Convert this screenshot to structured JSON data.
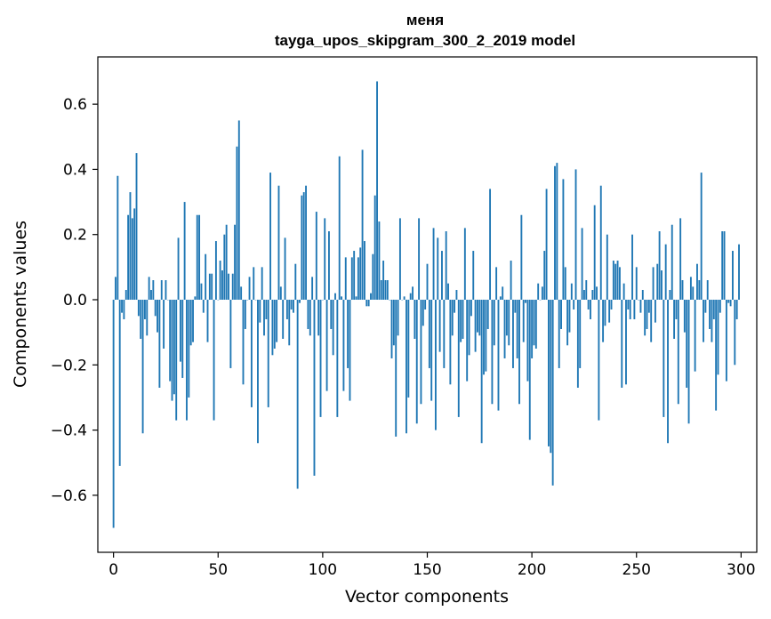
{
  "chart_data": {
    "type": "bar",
    "title": "меня",
    "subtitle": "tayga_upos_skipgram_300_2_2019 model",
    "xlabel": "Vector components",
    "ylabel": "Components values",
    "xlim": [
      -7.5,
      307.5
    ],
    "ylim": [
      -0.775,
      0.745
    ],
    "xticks": [
      0,
      50,
      100,
      150,
      200,
      250,
      300
    ],
    "xtick_labels": [
      "0",
      "50",
      "100",
      "150",
      "200",
      "250",
      "300"
    ],
    "yticks": [
      -0.6,
      -0.4,
      -0.2,
      0.0,
      0.2,
      0.4,
      0.6
    ],
    "ytick_labels": [
      "−0.6",
      "−0.4",
      "−0.2",
      "0.0",
      "0.2",
      "0.4",
      "0.6"
    ],
    "bar_color": "#1f77b4",
    "grid": false,
    "values": [
      -0.7,
      0.07,
      0.38,
      -0.51,
      -0.04,
      -0.06,
      0.03,
      0.26,
      0.33,
      0.25,
      0.28,
      0.45,
      -0.05,
      -0.12,
      -0.41,
      -0.06,
      -0.11,
      0.07,
      0.03,
      0.06,
      -0.05,
      -0.1,
      -0.27,
      0.06,
      -0.15,
      0.06,
      0.0,
      -0.25,
      -0.31,
      -0.29,
      -0.37,
      0.19,
      -0.19,
      -0.24,
      0.3,
      -0.37,
      -0.3,
      -0.14,
      -0.13,
      0.01,
      0.26,
      0.26,
      0.05,
      -0.04,
      0.14,
      -0.13,
      0.08,
      0.08,
      -0.37,
      0.18,
      0.0,
      0.12,
      0.09,
      0.2,
      0.23,
      0.08,
      -0.21,
      0.08,
      0.23,
      0.47,
      0.55,
      0.04,
      -0.26,
      -0.09,
      0.0,
      0.07,
      -0.33,
      0.1,
      0.0,
      -0.44,
      -0.07,
      0.1,
      -0.11,
      -0.06,
      -0.33,
      0.39,
      -0.17,
      -0.15,
      -0.13,
      0.35,
      0.04,
      -0.12,
      0.19,
      -0.06,
      -0.14,
      -0.03,
      -0.04,
      0.11,
      -0.58,
      -0.01,
      0.32,
      0.33,
      0.35,
      -0.09,
      -0.11,
      0.07,
      -0.54,
      0.27,
      -0.11,
      -0.36,
      0.0,
      0.25,
      -0.28,
      0.21,
      -0.09,
      -0.17,
      0.02,
      -0.36,
      0.44,
      0.01,
      -0.28,
      0.13,
      -0.21,
      -0.31,
      0.13,
      0.15,
      0.01,
      0.13,
      0.16,
      0.46,
      0.18,
      -0.02,
      -0.02,
      0.02,
      0.14,
      0.32,
      0.67,
      0.24,
      0.06,
      0.12,
      0.06,
      0.06,
      0.0,
      -0.18,
      -0.14,
      -0.42,
      -0.11,
      0.25,
      0.0,
      0.01,
      -0.41,
      -0.3,
      0.02,
      0.04,
      -0.12,
      -0.38,
      0.25,
      -0.32,
      -0.08,
      -0.03,
      0.11,
      -0.21,
      -0.31,
      0.22,
      -0.4,
      0.19,
      -0.16,
      0.15,
      -0.21,
      0.21,
      0.05,
      -0.26,
      -0.11,
      -0.04,
      0.03,
      -0.36,
      -0.13,
      -0.12,
      0.22,
      -0.25,
      -0.17,
      -0.05,
      0.15,
      -0.16,
      -0.1,
      -0.11,
      -0.44,
      -0.23,
      -0.22,
      -0.09,
      0.34,
      -0.32,
      -0.14,
      0.1,
      -0.34,
      0.01,
      0.04,
      -0.18,
      -0.11,
      -0.14,
      0.12,
      -0.21,
      -0.04,
      -0.18,
      -0.32,
      0.26,
      -0.13,
      -0.01,
      -0.25,
      -0.43,
      -0.18,
      -0.14,
      -0.15,
      0.05,
      0.0,
      0.04,
      0.15,
      0.34,
      -0.45,
      -0.47,
      -0.57,
      0.41,
      0.42,
      -0.21,
      -0.09,
      0.37,
      0.1,
      -0.14,
      -0.1,
      0.05,
      -0.03,
      0.4,
      -0.27,
      -0.21,
      0.22,
      0.03,
      0.06,
      -0.03,
      -0.06,
      0.03,
      0.29,
      0.04,
      -0.37,
      0.35,
      -0.13,
      -0.08,
      0.2,
      -0.07,
      -0.03,
      0.12,
      0.11,
      0.12,
      0.1,
      -0.27,
      0.05,
      -0.26,
      -0.03,
      -0.06,
      0.2,
      -0.06,
      0.1,
      0.0,
      -0.04,
      0.03,
      -0.11,
      -0.09,
      -0.04,
      -0.13,
      0.1,
      -0.07,
      0.11,
      0.21,
      0.09,
      -0.36,
      0.17,
      -0.44,
      0.03,
      0.23,
      -0.12,
      -0.06,
      -0.32,
      0.25,
      0.06,
      -0.1,
      -0.27,
      -0.38,
      0.07,
      0.04,
      -0.22,
      0.11,
      0.06,
      0.39,
      -0.13,
      -0.04,
      0.06,
      -0.09,
      -0.13,
      -0.06,
      -0.34,
      -0.23,
      -0.04,
      0.21,
      0.21,
      -0.25,
      -0.01,
      -0.02,
      0.15,
      -0.2,
      -0.06,
      0.17
    ]
  }
}
